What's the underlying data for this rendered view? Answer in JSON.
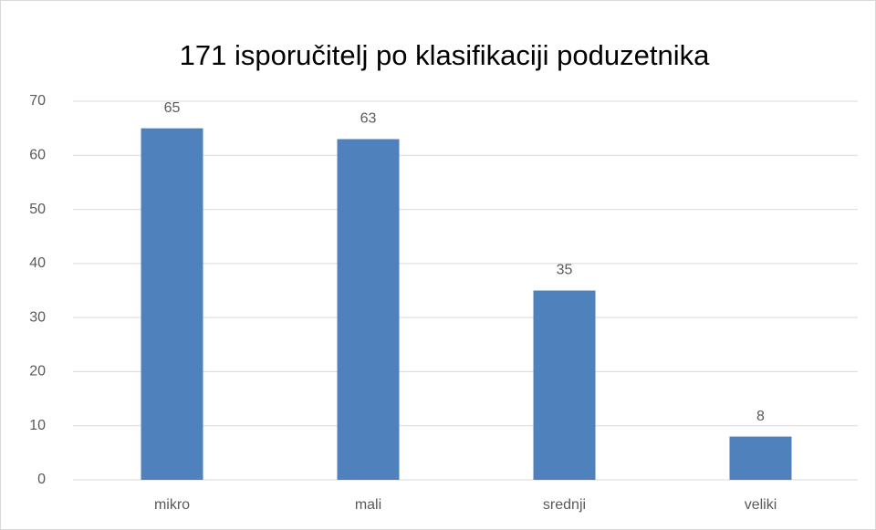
{
  "chart_data": {
    "type": "bar",
    "title": "171 isporučitelj po klasifikaciji poduzetnika",
    "categories": [
      "mikro",
      "mali",
      "srednji",
      "veliki"
    ],
    "values": [
      65,
      63,
      35,
      8
    ],
    "color": "#4f81bd",
    "ylim": [
      0,
      70
    ],
    "yticks": [
      0,
      10,
      20,
      30,
      40,
      50,
      60,
      70
    ],
    "grid": true,
    "data_labels": true
  }
}
